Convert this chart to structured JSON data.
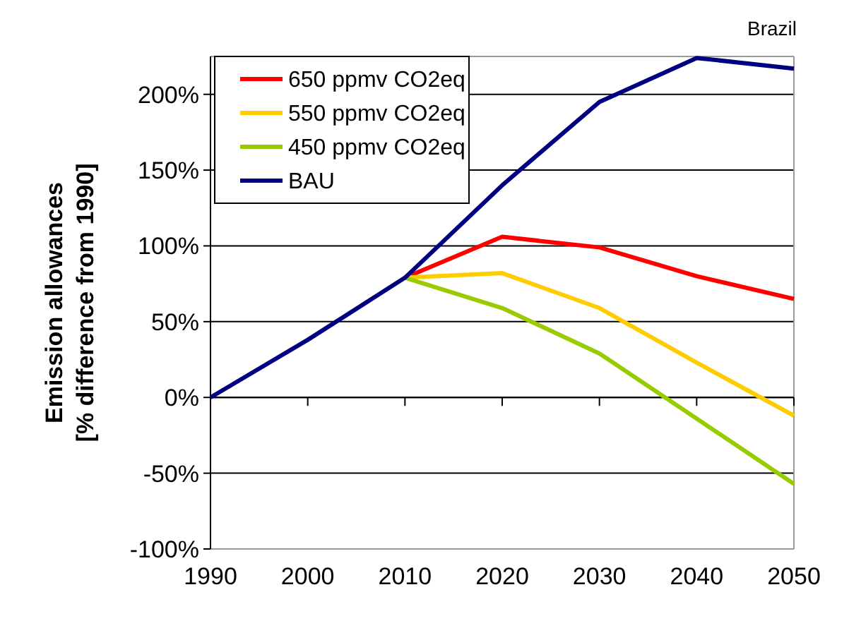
{
  "chart_data": {
    "type": "line",
    "title": "Brazil",
    "ylabel": "Emission allowances\n[% difference from 1990]",
    "x": [
      1990,
      2000,
      2010,
      2020,
      2030,
      2040,
      2050
    ],
    "xlim": [
      1990,
      2050
    ],
    "xticks": [
      1990,
      2000,
      2010,
      2020,
      2030,
      2040,
      2050
    ],
    "ylim": [
      -100,
      225
    ],
    "yticks": [
      {
        "value": -100,
        "label": "-100%"
      },
      {
        "value": -50,
        "label": "-50%"
      },
      {
        "value": 0,
        "label": "0%"
      },
      {
        "value": 50,
        "label": "50%"
      },
      {
        "value": 100,
        "label": "100%"
      },
      {
        "value": 150,
        "label": "150%"
      },
      {
        "value": 200,
        "label": "200%"
      }
    ],
    "grid": "y",
    "legend": "top left",
    "marker": "none",
    "line_style": "solid",
    "series": [
      {
        "name": "650 ppmv CO2eq",
        "color": "#ff0000",
        "values": [
          null,
          null,
          79,
          106,
          99,
          80,
          65
        ]
      },
      {
        "name": "550 ppmv CO2eq",
        "color": "#ffcc00",
        "values": [
          null,
          null,
          79,
          82,
          59,
          23,
          -12
        ]
      },
      {
        "name": "450 ppmv CO2eq",
        "color": "#99cc00",
        "values": [
          null,
          null,
          79,
          59,
          29,
          -14,
          -57
        ]
      },
      {
        "name": "BAU",
        "color": "#000080",
        "values": [
          0,
          38,
          79,
          140,
          195,
          224,
          217
        ]
      }
    ]
  }
}
